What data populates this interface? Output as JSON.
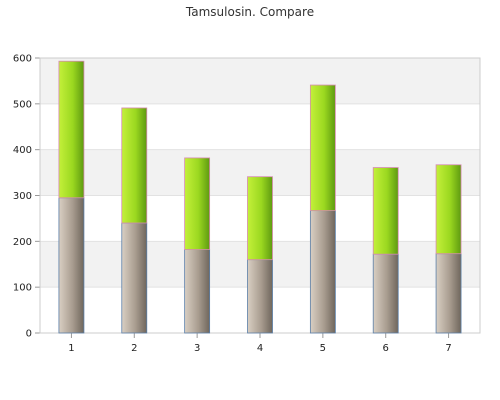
{
  "chart_data": {
    "type": "bar",
    "stacked": true,
    "title": "Tamsulosin. Compare",
    "xlabel": "",
    "ylabel": "",
    "categories": [
      "1",
      "2",
      "3",
      "4",
      "5",
      "6",
      "7"
    ],
    "series": [
      {
        "values": [
          295,
          240,
          182,
          160,
          267,
          172,
          173
        ],
        "color": "#8a7f72"
      },
      {
        "values": [
          298,
          251,
          200,
          181,
          274,
          189,
          194
        ],
        "color": "#8ed11a"
      }
    ],
    "ylim": [
      0,
      600
    ],
    "yticks": [
      0,
      100,
      200,
      300,
      400,
      500,
      600
    ],
    "grid": true,
    "alternating_bands": true
  }
}
